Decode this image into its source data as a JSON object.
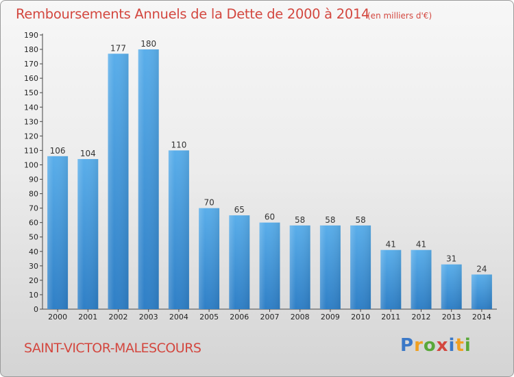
{
  "header": {
    "title": "Remboursements Annuels de la Dette de 2000 à 2014",
    "subtitle": "(en milliers d'€)"
  },
  "footer": {
    "commune": "SAINT-VICTOR-MALESCOURS",
    "logo": "Proxiti"
  },
  "colors": {
    "title": "#d3473f",
    "bar_top": "#5aaeea",
    "bar_bottom": "#2f7fc6"
  },
  "chart_data": {
    "type": "bar",
    "title": "Remboursements Annuels de la Dette de 2000 à 2014",
    "xlabel": "",
    "ylabel": "",
    "categories": [
      "2000",
      "2001",
      "2002",
      "2003",
      "2004",
      "2005",
      "2006",
      "2007",
      "2008",
      "2009",
      "2010",
      "2011",
      "2012",
      "2013",
      "2014"
    ],
    "values": [
      106,
      104,
      177,
      180,
      110,
      70,
      65,
      60,
      58,
      58,
      58,
      41,
      41,
      31,
      24
    ],
    "ylim": [
      0,
      190
    ],
    "yticks": [
      0,
      10,
      20,
      30,
      40,
      50,
      60,
      70,
      80,
      90,
      100,
      110,
      120,
      130,
      140,
      150,
      160,
      170,
      180,
      190
    ],
    "grid": false,
    "data_labels": true
  }
}
